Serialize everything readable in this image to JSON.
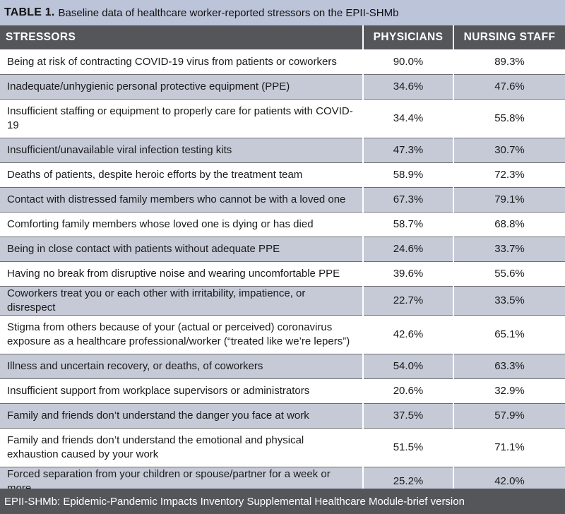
{
  "title": {
    "label": "TABLE 1.",
    "text": "Baseline data of healthcare worker-reported stressors on the EPII-SHMb"
  },
  "columns": [
    "STRESSORS",
    "PHYSICIANS",
    "NURSING STAFF"
  ],
  "rows": [
    {
      "stressor": "Being at risk of contracting COVID-19 virus from patients or coworkers",
      "physicians": "90.0%",
      "nursing": "89.3%"
    },
    {
      "stressor": "Inadequate/unhygienic personal protective equipment (PPE)",
      "physicians": "34.6%",
      "nursing": "47.6%"
    },
    {
      "stressor": "Insufficient staffing or equipment to properly care for patients with COVID-19",
      "physicians": "34.4%",
      "nursing": "55.8%"
    },
    {
      "stressor": "Insufficient/unavailable viral infection testing kits",
      "physicians": "47.3%",
      "nursing": "30.7%"
    },
    {
      "stressor": "Deaths of patients, despite heroic efforts by the treatment team",
      "physicians": "58.9%",
      "nursing": "72.3%"
    },
    {
      "stressor": "Contact with distressed family members who cannot be with a loved one",
      "physicians": "67.3%",
      "nursing": "79.1%"
    },
    {
      "stressor": "Comforting family members whose loved one is dying or has died",
      "physicians": "58.7%",
      "nursing": "68.8%"
    },
    {
      "stressor": "Being in close contact with patients without adequate PPE",
      "physicians": "24.6%",
      "nursing": "33.7%"
    },
    {
      "stressor": "Having no break from disruptive noise and wearing uncomfortable PPE",
      "physicians": "39.6%",
      "nursing": "55.6%"
    },
    {
      "stressor": "Coworkers treat you or each other with irritability, impatience, or disrespect",
      "physicians": "22.7%",
      "nursing": "33.5%"
    },
    {
      "stressor": "Stigma from others because of your (actual or perceived) coronavirus exposure as a healthcare professional/worker (“treated like we’re lepers”)",
      "physicians": "42.6%",
      "nursing": "65.1%"
    },
    {
      "stressor": "Illness and uncertain recovery, or deaths, of coworkers",
      "physicians": "54.0%",
      "nursing": "63.3%"
    },
    {
      "stressor": "Insufficient support from workplace supervisors or administrators",
      "physicians": "20.6%",
      "nursing": "32.9%"
    },
    {
      "stressor": "Family and friends don’t understand the danger you face at work",
      "physicians": "37.5%",
      "nursing": "57.9%"
    },
    {
      "stressor": "Family and friends don’t understand the emotional and physical exhaustion caused by your work",
      "physicians": "51.5%",
      "nursing": "71.1%"
    },
    {
      "stressor": "Forced separation from your children or spouse/partner for a week or more",
      "physicians": "25.2%",
      "nursing": "42.0%"
    }
  ],
  "footer": "EPII-SHMb: Epidemic-Pandemic Impacts Inventory Supplemental Healthcare Module-brief version"
}
